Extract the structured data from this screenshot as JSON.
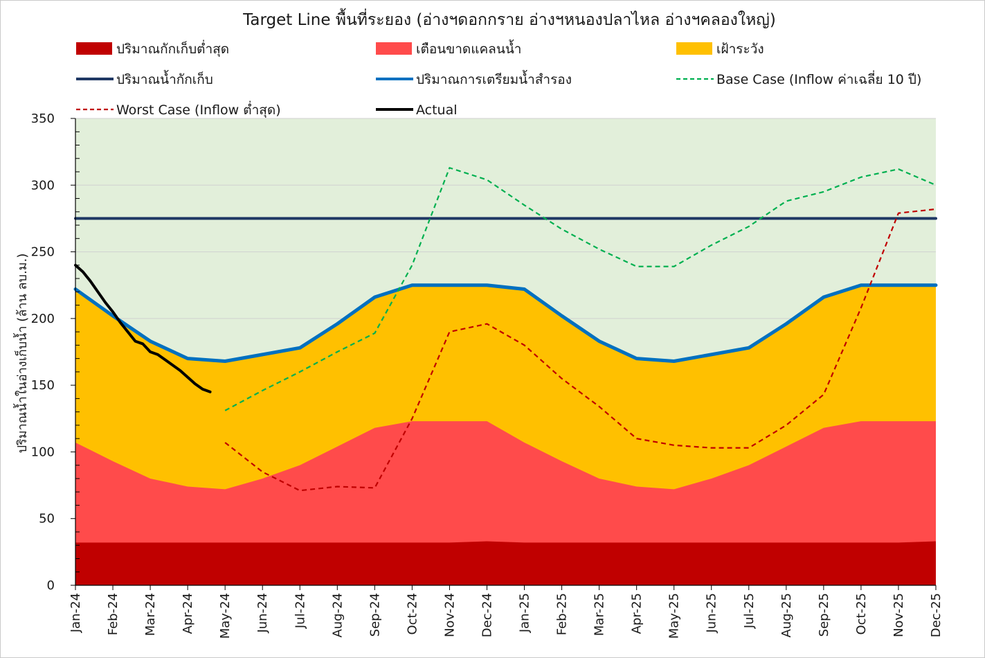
{
  "chart_data": {
    "type": "area",
    "title": "Target Line พื้นที่ระยอง (อ่างฯดอกกราย อ่างฯหนองปลาไหล อ่างฯคลองใหญ่)",
    "xlabel": "",
    "ylabel": "ปริมาณน้ำในอ่างเก็บน้ำ (ล้าน ลบ.ม.)",
    "ylim": [
      0,
      350
    ],
    "yticks": [
      0,
      50,
      100,
      150,
      200,
      250,
      300,
      350
    ],
    "grid": true,
    "legend_position": "top",
    "categories": [
      "Jan-24",
      "Feb-24",
      "Mar-24",
      "Apr-24",
      "May-24",
      "Jun-24",
      "Jul-24",
      "Aug-24",
      "Sep-24",
      "Oct-24",
      "Nov-24",
      "Dec-24",
      "Jan-25",
      "Feb-25",
      "Mar-25",
      "Apr-25",
      "May-25",
      "Jun-25",
      "Jul-25",
      "Aug-25",
      "Sep-25",
      "Oct-25",
      "Nov-25",
      "Dec-25"
    ],
    "background_color": "#e2efda",
    "areas": [
      {
        "name": "ปริมาณกักเก็บต่ำสุด",
        "color": "#c00000",
        "values": [
          32,
          32,
          32,
          32,
          32,
          32,
          32,
          32,
          32,
          32,
          32,
          33,
          32,
          32,
          32,
          32,
          32,
          32,
          32,
          32,
          32,
          32,
          32,
          33
        ]
      },
      {
        "name": "เตือนขาดแคลนน้ำ",
        "color": "#ff4b4b",
        "values": [
          107,
          93,
          80,
          74,
          72,
          80,
          90,
          104,
          118,
          123,
          123,
          123,
          107,
          93,
          80,
          74,
          72,
          80,
          90,
          104,
          118,
          123,
          123,
          123
        ]
      },
      {
        "name": "เฝ้าระวัง",
        "color": "#ffc000",
        "values": [
          222,
          202,
          183,
          170,
          168,
          173,
          178,
          196,
          216,
          225,
          225,
          225,
          222,
          202,
          183,
          170,
          168,
          173,
          178,
          196,
          216,
          225,
          225,
          225
        ]
      }
    ],
    "lines": [
      {
        "name": "ปริมาณน้ำกักเก็บ",
        "color": "#1f3864",
        "style": "solid",
        "values": [
          275,
          275,
          275,
          275,
          275,
          275,
          275,
          275,
          275,
          275,
          275,
          275,
          275,
          275,
          275,
          275,
          275,
          275,
          275,
          275,
          275,
          275,
          275,
          275
        ]
      },
      {
        "name": "ปริมาณการเตรียมน้ำสำรอง",
        "color": "#0070c0",
        "style": "solid",
        "values": [
          222,
          202,
          183,
          170,
          168,
          173,
          178,
          196,
          216,
          225,
          225,
          225,
          222,
          202,
          183,
          170,
          168,
          173,
          178,
          196,
          216,
          225,
          225,
          225
        ]
      },
      {
        "name": "Base Case (Inflow ค่าเฉลี่ย 10 ปี)",
        "color": "#00b050",
        "style": "dashed",
        "values": [
          null,
          null,
          null,
          null,
          131,
          146,
          160,
          175,
          189,
          240,
          313,
          304,
          285,
          267,
          252,
          239,
          239,
          255,
          269,
          288,
          295,
          306,
          312,
          300
        ]
      },
      {
        "name": "Worst Case (Inflow ต่ำสุด)",
        "color": "#c00000",
        "style": "dashed",
        "values": [
          null,
          null,
          null,
          null,
          107,
          85,
          71,
          74,
          73,
          125,
          190,
          196,
          180,
          155,
          134,
          110,
          105,
          103,
          103,
          120,
          143,
          208,
          279,
          282
        ]
      }
    ],
    "actual": {
      "name": "Actual",
      "color": "#000000",
      "style": "solid",
      "x": [
        0,
        0.2,
        0.4,
        0.6,
        0.8,
        1.0,
        1.2,
        1.4,
        1.6,
        1.8,
        2.0,
        2.2,
        2.4,
        2.6,
        2.8,
        3.0,
        3.2,
        3.4,
        3.6
      ],
      "values": [
        240,
        235,
        228,
        220,
        212,
        205,
        197,
        190,
        183,
        181,
        175,
        173,
        169,
        165,
        161,
        156,
        151,
        147,
        145
      ]
    },
    "legend": [
      {
        "name": "ปริมาณกักเก็บต่ำสุด",
        "kind": "box",
        "color": "#c00000"
      },
      {
        "name": "เตือนขาดแคลนน้ำ",
        "kind": "box",
        "color": "#ff4b4b"
      },
      {
        "name": "เฝ้าระวัง",
        "kind": "box",
        "color": "#ffc000"
      },
      {
        "name": "ปริมาณน้ำกักเก็บ",
        "kind": "line",
        "color": "#1f3864",
        "style": "solid"
      },
      {
        "name": "ปริมาณการเตรียมน้ำสำรอง",
        "kind": "line",
        "color": "#0070c0",
        "style": "solid"
      },
      {
        "name": "Base Case (Inflow ค่าเฉลี่ย 10 ปี)",
        "kind": "line",
        "color": "#00b050",
        "style": "dashed"
      },
      {
        "name": "Worst Case (Inflow ต่ำสุด)",
        "kind": "line",
        "color": "#c00000",
        "style": "dashed"
      },
      {
        "name": "Actual",
        "kind": "line",
        "color": "#000000",
        "style": "solid"
      }
    ]
  }
}
